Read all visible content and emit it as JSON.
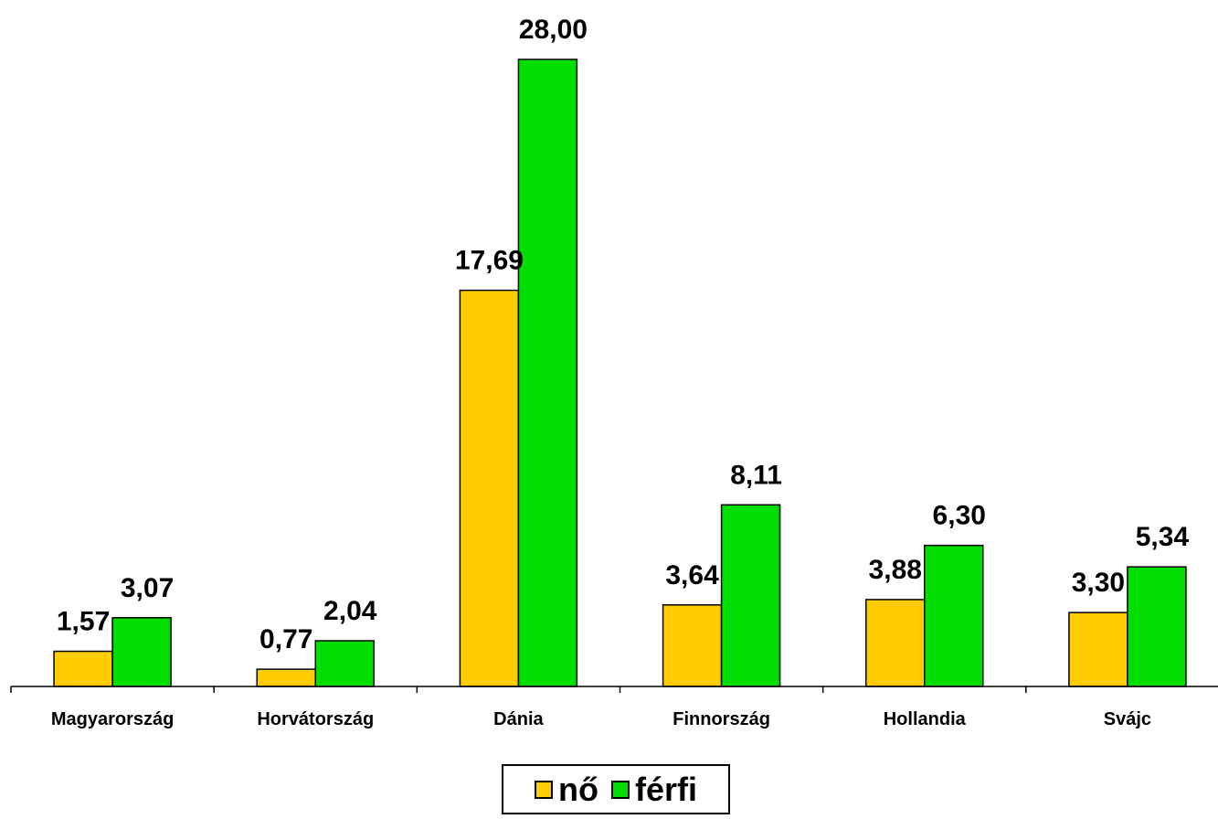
{
  "chart_data": {
    "type": "bar",
    "categories": [
      "Magyarország",
      "Horvátország",
      "Dánia",
      "Finnország",
      "Hollandia",
      "Svájc"
    ],
    "series": [
      {
        "name": "nő",
        "values": [
          1.57,
          0.77,
          17.69,
          3.64,
          3.88,
          3.3
        ],
        "labels": [
          "1,57",
          "0,77",
          "17,69",
          "3,64",
          "3,88",
          "3,30"
        ],
        "color": "#FFCC00"
      },
      {
        "name": "férfi",
        "values": [
          3.07,
          2.04,
          28.0,
          8.11,
          6.3,
          5.34
        ],
        "labels": [
          "3,07",
          "2,04",
          "28,00",
          "8,11",
          "6,30",
          "5,34"
        ],
        "color": "#00DD00"
      }
    ],
    "title": "",
    "xlabel": "",
    "ylabel": "",
    "ylim": [
      0,
      28
    ],
    "grid": false,
    "legend_position": "bottom"
  }
}
